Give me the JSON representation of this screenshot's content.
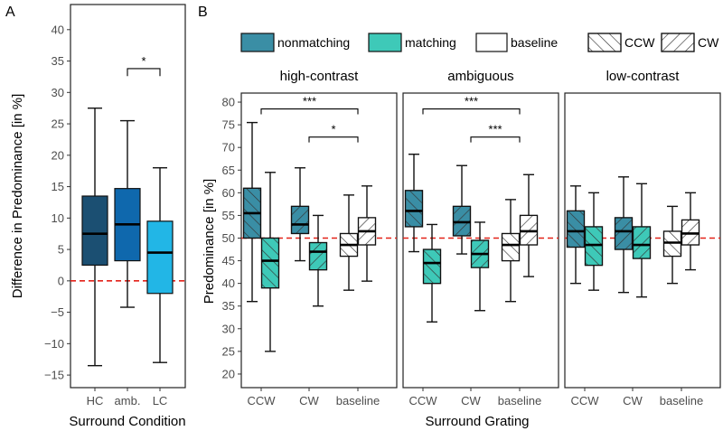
{
  "chart_data": [
    {
      "panel": "A",
      "type": "boxplot",
      "xlabel": "Surround Condition",
      "ylabel": "Difference in Predominance [in %]",
      "ylim": [
        -17,
        44
      ],
      "yticks": [
        -15,
        -10,
        -5,
        0,
        5,
        10,
        15,
        20,
        25,
        30,
        35,
        40
      ],
      "reference_line": 0,
      "categories": [
        "HC",
        "amb.",
        "LC"
      ],
      "boxes": [
        {
          "label": "HC",
          "min": -13.5,
          "q1": 2.5,
          "median": 7.5,
          "q3": 13.5,
          "max": 27.5,
          "color": "#1b4f72"
        },
        {
          "label": "amb.",
          "min": -4.2,
          "q1": 3.2,
          "median": 9.0,
          "q3": 14.7,
          "max": 25.5,
          "color": "#0f68ad"
        },
        {
          "label": "LC",
          "min": -13.0,
          "q1": -2.0,
          "median": 4.5,
          "q3": 9.5,
          "max": 18.0,
          "color": "#22b6e6"
        }
      ],
      "significance": [
        {
          "from": "amb.",
          "to": "LC",
          "label": "*"
        }
      ]
    },
    {
      "panel": "B",
      "type": "boxplot",
      "xlabel": "Surround Grating",
      "ylabel": "Predominance [in %]",
      "ylim": [
        17,
        82
      ],
      "yticks": [
        20,
        25,
        30,
        35,
        40,
        45,
        50,
        55,
        60,
        65,
        70,
        75,
        80
      ],
      "reference_line": 50,
      "legend": [
        {
          "label": "nonmatching",
          "fill": "#3a8ea5",
          "hatch": "none"
        },
        {
          "label": "matching",
          "fill": "#3ec9b8",
          "hatch": "none"
        },
        {
          "label": "baseline",
          "fill": "#ffffff",
          "hatch": "none"
        },
        {
          "label": "CCW",
          "fill": "#ffffff",
          "hatch": "backslash"
        },
        {
          "label": "CW",
          "fill": "#ffffff",
          "hatch": "slash"
        }
      ],
      "categories": [
        "CCW",
        "CW",
        "baseline"
      ],
      "facets": [
        {
          "title": "high-contrast",
          "boxes": [
            {
              "group": "CCW",
              "condition": "nonmatching",
              "min": 36,
              "q1": 50,
              "median": 55.5,
              "q3": 61,
              "max": 75.5
            },
            {
              "group": "CCW",
              "condition": "matching",
              "min": 25,
              "q1": 39,
              "median": 45,
              "q3": 50,
              "max": 64.5
            },
            {
              "group": "CW",
              "condition": "nonmatching",
              "min": 45,
              "q1": 51,
              "median": 53,
              "q3": 57,
              "max": 65.5
            },
            {
              "group": "CW",
              "condition": "matching",
              "min": 35,
              "q1": 43,
              "median": 47,
              "q3": 49,
              "max": 55
            },
            {
              "group": "baseline",
              "condition": "CCW",
              "min": 38.5,
              "q1": 46,
              "median": 48.5,
              "q3": 51,
              "max": 59.5
            },
            {
              "group": "baseline",
              "condition": "CW",
              "min": 40.5,
              "q1": 48.5,
              "median": 51.5,
              "q3": 54.5,
              "max": 61.5
            }
          ],
          "significance": [
            {
              "from": "CCW",
              "to": "baseline",
              "label": "***"
            },
            {
              "from": "CW",
              "to": "baseline",
              "label": "*"
            }
          ]
        },
        {
          "title": "ambiguous",
          "boxes": [
            {
              "group": "CCW",
              "condition": "nonmatching",
              "min": 47,
              "q1": 52.5,
              "median": 56,
              "q3": 60.5,
              "max": 68.5
            },
            {
              "group": "CCW",
              "condition": "matching",
              "min": 31.5,
              "q1": 40,
              "median": 44.5,
              "q3": 47.5,
              "max": 53
            },
            {
              "group": "CW",
              "condition": "nonmatching",
              "min": 46.5,
              "q1": 50.5,
              "median": 53.5,
              "q3": 57,
              "max": 66
            },
            {
              "group": "CW",
              "condition": "matching",
              "min": 34,
              "q1": 43.5,
              "median": 46.5,
              "q3": 49.5,
              "max": 53.5
            },
            {
              "group": "baseline",
              "condition": "CCW",
              "min": 36,
              "q1": 45,
              "median": 48.5,
              "q3": 51,
              "max": 58.5
            },
            {
              "group": "baseline",
              "condition": "CW",
              "min": 41.5,
              "q1": 48.5,
              "median": 51.5,
              "q3": 55,
              "max": 64
            }
          ],
          "significance": [
            {
              "from": "CCW",
              "to": "baseline",
              "label": "***"
            },
            {
              "from": "CW",
              "to": "baseline",
              "label": "***"
            }
          ]
        },
        {
          "title": "low-contrast",
          "boxes": [
            {
              "group": "CCW",
              "condition": "nonmatching",
              "min": 40,
              "q1": 48,
              "median": 51.5,
              "q3": 56,
              "max": 61.5
            },
            {
              "group": "CCW",
              "condition": "matching",
              "min": 38.5,
              "q1": 44,
              "median": 48.5,
              "q3": 52.5,
              "max": 60
            },
            {
              "group": "CW",
              "condition": "nonmatching",
              "min": 38,
              "q1": 47.5,
              "median": 51.5,
              "q3": 54.5,
              "max": 63.5
            },
            {
              "group": "CW",
              "condition": "matching",
              "min": 37,
              "q1": 45.5,
              "median": 48.5,
              "q3": 52.5,
              "max": 62
            },
            {
              "group": "baseline",
              "condition": "CCW",
              "min": 40,
              "q1": 46,
              "median": 49,
              "q3": 51.5,
              "max": 57
            },
            {
              "group": "baseline",
              "condition": "CW",
              "min": 43,
              "q1": 48.5,
              "median": 51,
              "q3": 54,
              "max": 60
            }
          ],
          "significance": []
        }
      ]
    }
  ]
}
